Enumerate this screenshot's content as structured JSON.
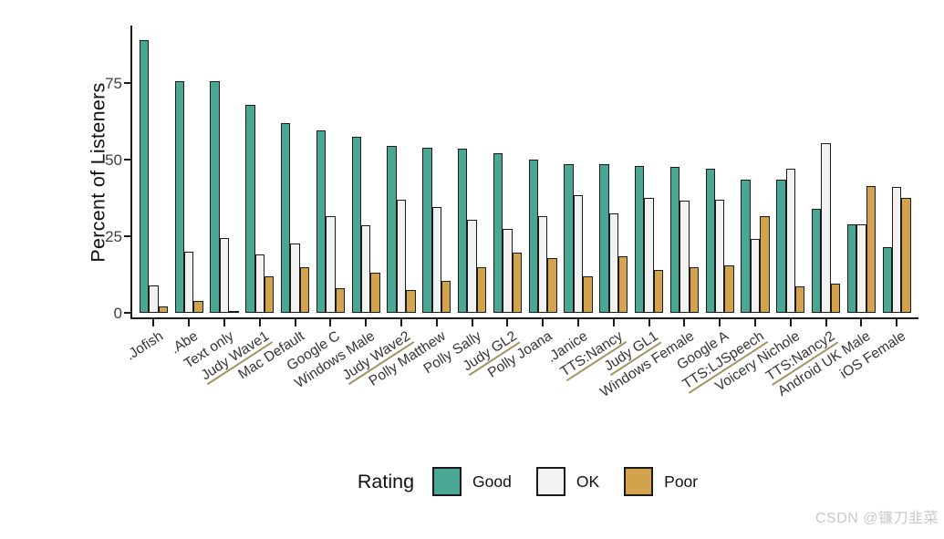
{
  "watermark": "CSDN @镰刀韭菜",
  "legend": {
    "title": "Rating",
    "items": [
      {
        "label": "Good",
        "color": "#4aa793"
      },
      {
        "label": "OK",
        "color": "#f2f2f2"
      },
      {
        "label": "Poor",
        "color": "#d2a24c"
      }
    ]
  },
  "chart_data": {
    "type": "bar",
    "title": "",
    "xlabel": "",
    "ylabel": "Percent of Listeners",
    "ylim": [
      0,
      93
    ],
    "yticks": [
      0,
      25,
      50,
      75
    ],
    "grid": false,
    "legend_title": "Rating",
    "legend_position": "bottom",
    "bar_outline_color": "#1a1a1a",
    "underline_color": "#a59263",
    "categories": [
      ".Jofish",
      ".Abe",
      "Text only",
      "Judy Wave1",
      "Mac Default",
      "Google C",
      "Windows Male",
      "Judy Wave2",
      "Polly Matthew",
      "Polly Sally",
      "Judy GL2",
      "Polly Joana",
      ".Janice",
      "TTS:Nancy",
      "Judy GL1",
      "Windows Female",
      "Google A",
      "TTS:LJSpeech",
      "Voicery Nichole",
      "TTS:Nancy2",
      "Android UK Male",
      "iOS Female"
    ],
    "underlined_categories": [
      "Judy Wave1",
      "Judy Wave2",
      "Judy GL2",
      "TTS:Nancy",
      "Judy GL1",
      "TTS:LJSpeech",
      "TTS:Nancy2"
    ],
    "series": [
      {
        "name": "Good",
        "color": "#4aa793",
        "values": [
          89,
          75.5,
          75.5,
          68,
          62,
          59.5,
          57.5,
          54.5,
          54,
          53.5,
          52,
          50,
          48.5,
          48.5,
          48,
          47.5,
          47,
          43.5,
          43.5,
          34,
          29,
          21.5
        ]
      },
      {
        "name": "OK",
        "color": "#f2f2f2",
        "values": [
          9,
          20,
          24.5,
          19,
          22.5,
          31.5,
          28.5,
          37,
          34.5,
          30.5,
          27.5,
          31.5,
          38.5,
          32.5,
          37.5,
          36.5,
          37,
          24,
          47,
          55.5,
          29,
          41
        ]
      },
      {
        "name": "Poor",
        "color": "#d2a24c",
        "values": [
          2,
          4,
          0,
          12,
          15,
          8,
          13,
          7.5,
          10.5,
          15,
          19.5,
          18,
          12,
          18.5,
          14,
          15,
          15.5,
          31.5,
          8.5,
          9.5,
          41.5,
          37.5
        ]
      }
    ]
  }
}
